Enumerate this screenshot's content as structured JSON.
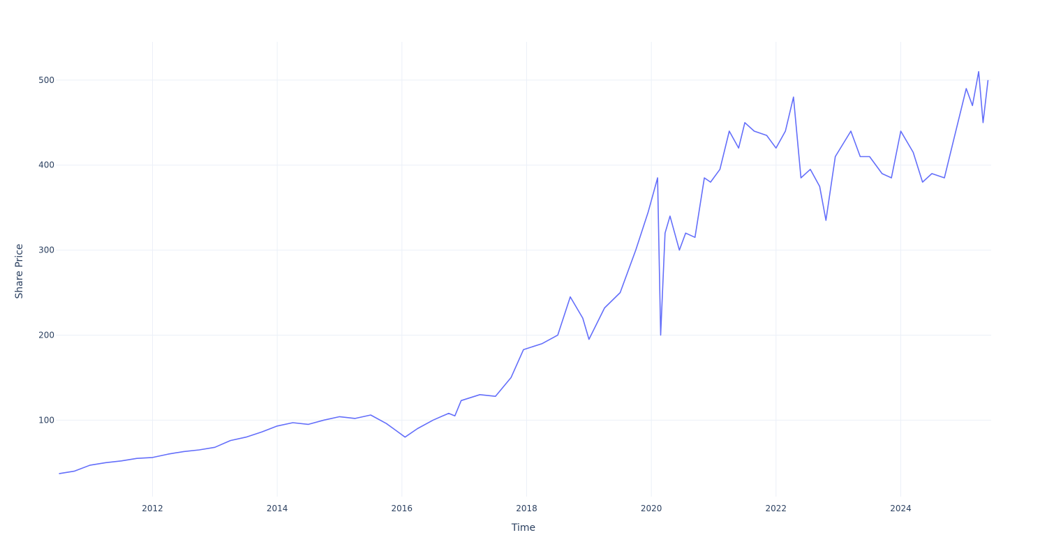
{
  "chart_data": {
    "type": "line",
    "title": "",
    "xlabel": "Time",
    "ylabel": "Share Price",
    "line_color": "#636efa",
    "grid": true,
    "xlim": [
      2010.45,
      2025.45
    ],
    "ylim": [
      10,
      545
    ],
    "x_ticks": [
      2012,
      2014,
      2016,
      2018,
      2020,
      2022,
      2024
    ],
    "x_tick_labels": [
      "2012",
      "2014",
      "2016",
      "2018",
      "2020",
      "2022",
      "2024"
    ],
    "y_ticks": [
      100,
      200,
      300,
      400,
      500
    ],
    "y_tick_labels": [
      "100",
      "200",
      "300",
      "400",
      "500"
    ],
    "series": [
      {
        "x": [
          2010.5,
          2010.75,
          2011.0,
          2011.25,
          2011.5,
          2011.75,
          2012.0,
          2012.25,
          2012.5,
          2012.75,
          2013.0,
          2013.25,
          2013.5,
          2013.75,
          2014.0,
          2014.25,
          2014.5,
          2014.75,
          2015.0,
          2015.25,
          2015.5,
          2015.75,
          2015.9,
          2016.05,
          2016.25,
          2016.5,
          2016.75,
          2016.85,
          2016.95,
          2017.25,
          2017.5,
          2017.75,
          2017.95,
          2018.25,
          2018.5,
          2018.7,
          2018.9,
          2019.0,
          2019.25,
          2019.5,
          2019.75,
          2019.95,
          2020.1,
          2020.15,
          2020.22,
          2020.3,
          2020.45,
          2020.55,
          2020.7,
          2020.85,
          2020.95,
          2021.1,
          2021.25,
          2021.4,
          2021.5,
          2021.65,
          2021.85,
          2022.0,
          2022.15,
          2022.28,
          2022.4,
          2022.55,
          2022.7,
          2022.8,
          2022.95,
          2023.2,
          2023.35,
          2023.5,
          2023.7,
          2023.85,
          2024.0,
          2024.2,
          2024.35,
          2024.5,
          2024.7,
          2024.85,
          2025.05,
          2025.15,
          2025.25,
          2025.32,
          2025.4
        ],
        "y": [
          37,
          40,
          47,
          50,
          52,
          55,
          56,
          60,
          63,
          65,
          68,
          76,
          80,
          86,
          93,
          97,
          95,
          100,
          104,
          102,
          106,
          96,
          88,
          80,
          90,
          100,
          108,
          105,
          123,
          130,
          128,
          150,
          183,
          190,
          200,
          245,
          220,
          195,
          232,
          250,
          300,
          345,
          385,
          200,
          320,
          340,
          300,
          320,
          315,
          385,
          380,
          395,
          440,
          420,
          450,
          440,
          435,
          420,
          440,
          480,
          385,
          395,
          375,
          335,
          410,
          440,
          410,
          410,
          390,
          385,
          440,
          415,
          380,
          390,
          385,
          430,
          490,
          470,
          510,
          450,
          500
        ]
      }
    ]
  }
}
